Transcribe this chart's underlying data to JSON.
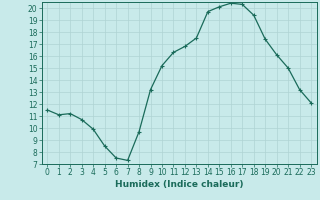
{
  "x": [
    0,
    1,
    2,
    3,
    4,
    5,
    6,
    7,
    8,
    9,
    10,
    11,
    12,
    13,
    14,
    15,
    16,
    17,
    18,
    19,
    20,
    21,
    22,
    23
  ],
  "y": [
    11.5,
    11.1,
    11.2,
    10.7,
    9.9,
    8.5,
    7.5,
    7.3,
    9.7,
    13.2,
    15.2,
    16.3,
    16.8,
    17.5,
    19.7,
    20.1,
    20.4,
    20.3,
    19.4,
    17.4,
    16.1,
    15.0,
    13.2,
    12.1
  ],
  "line_color": "#1a6b5a",
  "marker": "+",
  "marker_size": 3,
  "marker_linewidth": 0.8,
  "bg_color": "#c8eaea",
  "grid_color": "#afd4d4",
  "xlabel": "Humidex (Indice chaleur)",
  "ylim": [
    7,
    20.5
  ],
  "xlim": [
    -0.5,
    23.5
  ],
  "yticks": [
    7,
    8,
    9,
    10,
    11,
    12,
    13,
    14,
    15,
    16,
    17,
    18,
    19,
    20
  ],
  "xticks": [
    0,
    1,
    2,
    3,
    4,
    5,
    6,
    7,
    8,
    9,
    10,
    11,
    12,
    13,
    14,
    15,
    16,
    17,
    18,
    19,
    20,
    21,
    22,
    23
  ],
  "xlabel_fontsize": 6.5,
  "tick_fontsize": 5.5,
  "tick_color": "#1a6b5a",
  "axis_color": "#1a6b5a",
  "line_width": 0.9
}
